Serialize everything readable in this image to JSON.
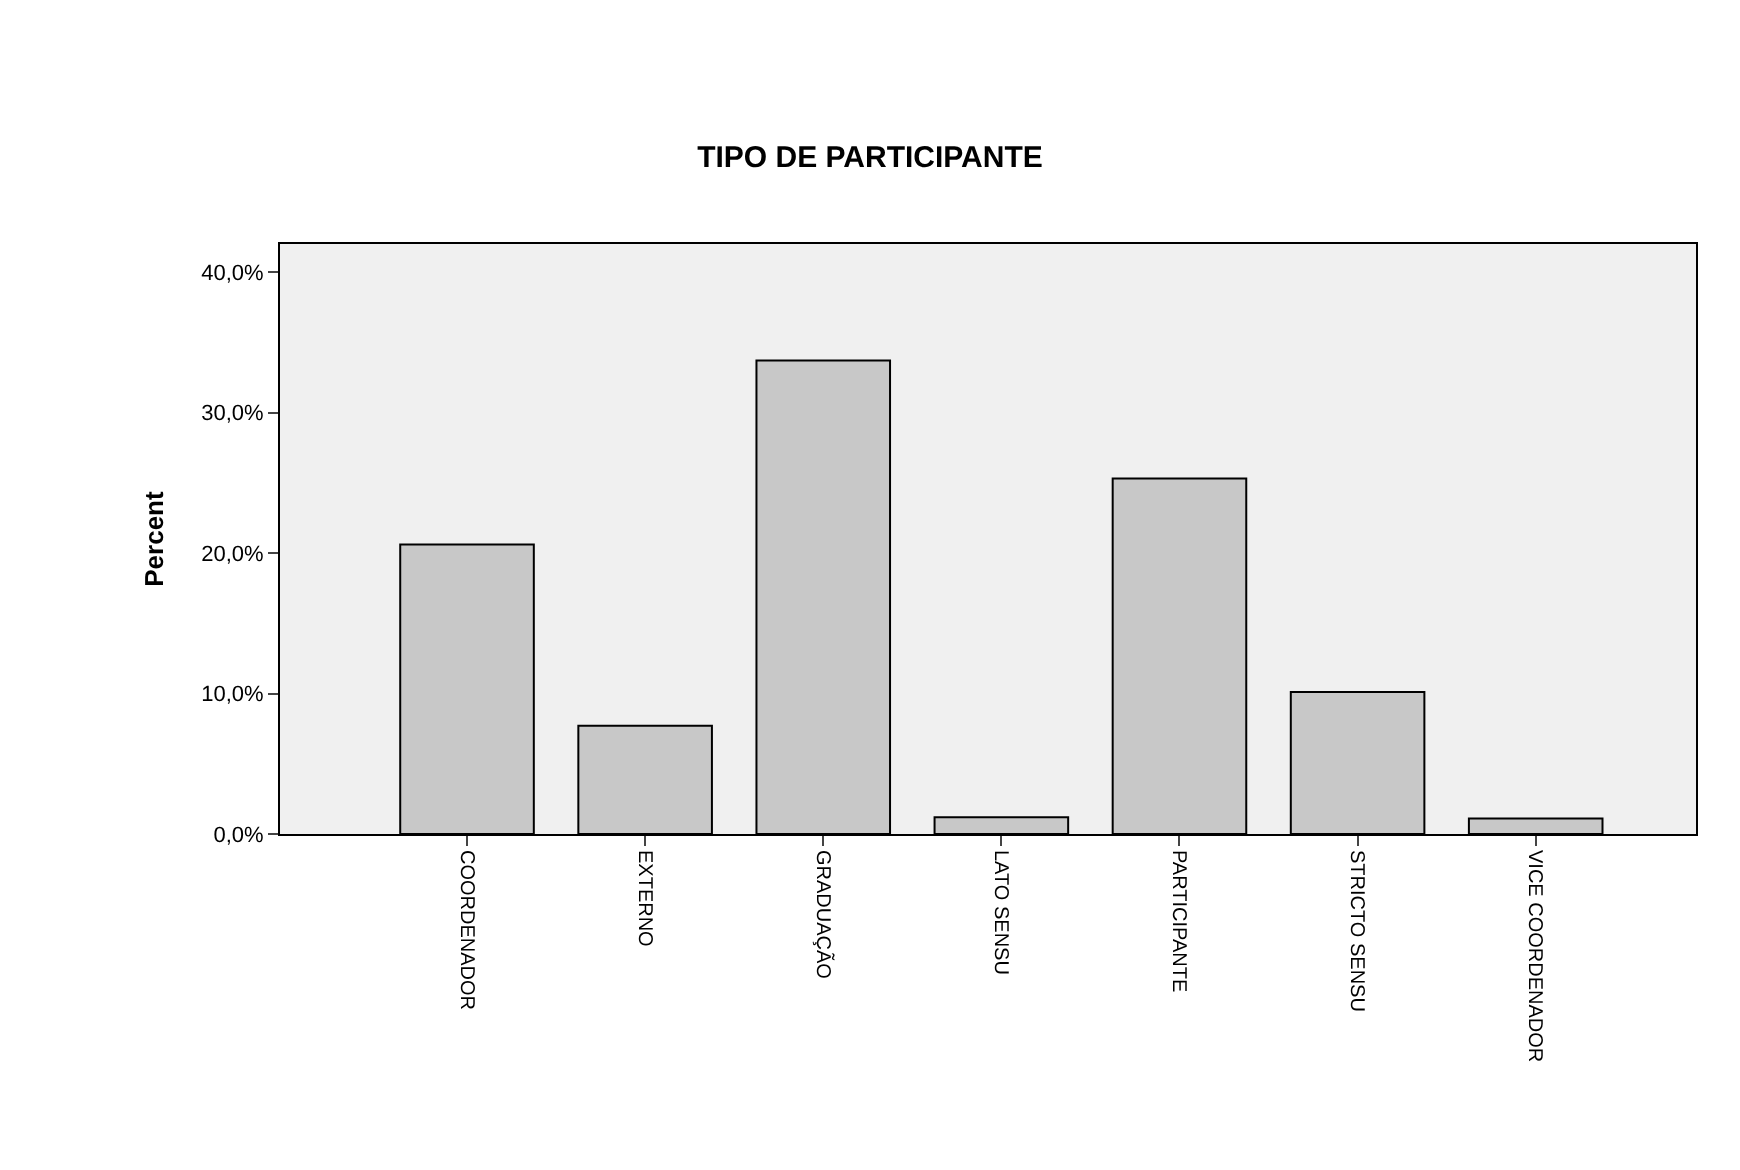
{
  "chart_data": {
    "type": "bar",
    "title": "TIPO DE PARTICIPANTE",
    "ylabel": "Percent",
    "categories": [
      "COORDENADOR",
      "EXTERNO",
      "GRADUAÇÃO",
      "LATO SENSU",
      "PARTICIPANTE",
      "STRICTO SENSU",
      "VICE COORDENADOR"
    ],
    "values": [
      20.6,
      7.7,
      33.7,
      1.2,
      25.3,
      10.1,
      1.1
    ],
    "color": "#c8c8c8",
    "ylim": [
      0,
      42
    ],
    "yticks": [
      {
        "value": 0,
        "label": "0,0%"
      },
      {
        "value": 10,
        "label": "10,0%"
      },
      {
        "value": 20,
        "label": "20,0%"
      },
      {
        "value": 30,
        "label": "30,0%"
      },
      {
        "value": 40,
        "label": "40,0%"
      }
    ],
    "grid": false
  }
}
